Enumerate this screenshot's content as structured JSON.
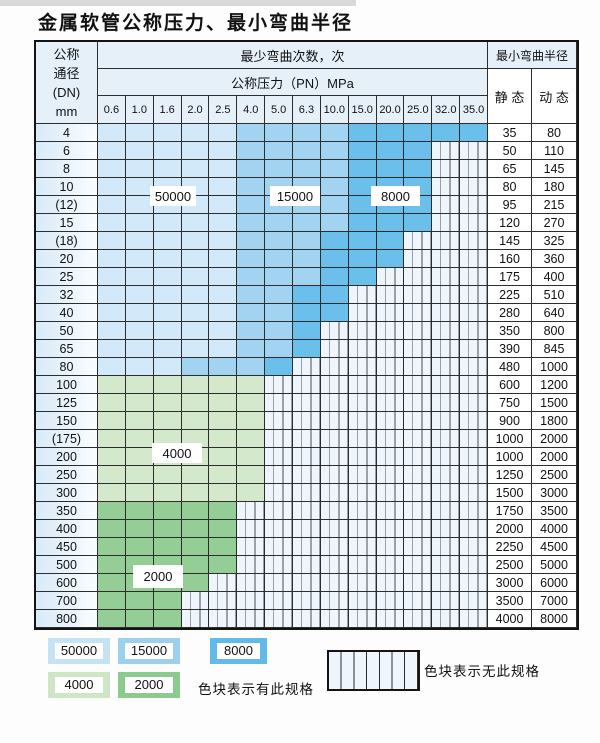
{
  "title": "金属软管公称压力、最小弯曲半径",
  "header": {
    "dn_lines": [
      "公称",
      "通径",
      "(DN)",
      "mm"
    ],
    "bend_cycles_label": "最少弯曲次数，次",
    "pressure_label": "公称压力（PN）MPa",
    "min_radius_label": "最小弯曲半径",
    "static_label": "静 态",
    "dynamic_label": "动 态",
    "pressure_cols": [
      "0.6",
      "1.0",
      "1.6",
      "2.0",
      "2.5",
      "4.0",
      "5.0",
      "6.3",
      "10.0",
      "15.0",
      "20.0",
      "25.0",
      "32.0",
      "35.0"
    ]
  },
  "zone_labels": {
    "b50000": "50000",
    "b15000": "15000",
    "b8000": "8000",
    "g4000": "4000",
    "g2000": "2000"
  },
  "colors": {
    "c50000": "#d2e9f9",
    "c15000": "#a2d4f2",
    "c8000": "#6bbfeb",
    "g4000": "#d4e8cb",
    "g2000": "#94cd96"
  },
  "legend": {
    "has_spec_text": "色块表示有此规格",
    "no_spec_text": "色块表示无此规格",
    "swatches": [
      {
        "label": "50000",
        "color": "#c6e3f5"
      },
      {
        "label": "15000",
        "color": "#9bd0ef"
      },
      {
        "label": "8000",
        "color": "#62bae7"
      },
      {
        "label": "4000",
        "color": "#cfe6c6"
      },
      {
        "label": "2000",
        "color": "#8ccb8e"
      }
    ]
  },
  "table": {
    "note": "span = number of pressure columns (from 0.6) that have this spec; zones = [last col of 50000 shade, last col of 15000 shade] for blue rows; shade = g4000/g2000 for green rows; remaining columns up to 35.0 are hatched (no spec)",
    "rows": [
      {
        "dn": "4",
        "span": 14,
        "zones": [
          5,
          9
        ],
        "static": "35",
        "dynamic": "80"
      },
      {
        "dn": "6",
        "span": 12,
        "zones": [
          5,
          9
        ],
        "static": "50",
        "dynamic": "110"
      },
      {
        "dn": "8",
        "span": 12,
        "zones": [
          5,
          9
        ],
        "static": "65",
        "dynamic": "145"
      },
      {
        "dn": "10",
        "span": 12,
        "zones": [
          5,
          9
        ],
        "static": "80",
        "dynamic": "180"
      },
      {
        "dn": "(12)",
        "span": 12,
        "zones": [
          5,
          9
        ],
        "static": "95",
        "dynamic": "215"
      },
      {
        "dn": "15",
        "span": 12,
        "zones": [
          5,
          9
        ],
        "static": "120",
        "dynamic": "270"
      },
      {
        "dn": "(18)",
        "span": 11,
        "zones": [
          5,
          8
        ],
        "static": "145",
        "dynamic": "325"
      },
      {
        "dn": "20",
        "span": 11,
        "zones": [
          5,
          8
        ],
        "static": "160",
        "dynamic": "360"
      },
      {
        "dn": "25",
        "span": 10,
        "zones": [
          5,
          8
        ],
        "static": "175",
        "dynamic": "400"
      },
      {
        "dn": "32",
        "span": 9,
        "zones": [
          5,
          7
        ],
        "static": "225",
        "dynamic": "510"
      },
      {
        "dn": "40",
        "span": 9,
        "zones": [
          5,
          7
        ],
        "static": "280",
        "dynamic": "640"
      },
      {
        "dn": "50",
        "span": 8,
        "zones": [
          5,
          7
        ],
        "static": "350",
        "dynamic": "800"
      },
      {
        "dn": "65",
        "span": 8,
        "zones": [
          5,
          7
        ],
        "static": "390",
        "dynamic": "845"
      },
      {
        "dn": "80",
        "span": 7,
        "zones": [
          3,
          6
        ],
        "static": "480",
        "dynamic": "1000"
      },
      {
        "dn": "100",
        "span": 6,
        "shade": "g4000",
        "static": "600",
        "dynamic": "1200"
      },
      {
        "dn": "125",
        "span": 6,
        "shade": "g4000",
        "static": "750",
        "dynamic": "1500"
      },
      {
        "dn": "150",
        "span": 6,
        "shade": "g4000",
        "static": "900",
        "dynamic": "1800"
      },
      {
        "dn": "(175)",
        "span": 6,
        "shade": "g4000",
        "static": "1000",
        "dynamic": "2000"
      },
      {
        "dn": "200",
        "span": 6,
        "shade": "g4000",
        "static": "1000",
        "dynamic": "2000"
      },
      {
        "dn": "250",
        "span": 6,
        "shade": "g4000",
        "static": "1250",
        "dynamic": "2500"
      },
      {
        "dn": "300",
        "span": 6,
        "shade": "g4000",
        "static": "1500",
        "dynamic": "3000"
      },
      {
        "dn": "350",
        "span": 5,
        "shade": "g2000",
        "static": "1750",
        "dynamic": "3500"
      },
      {
        "dn": "400",
        "span": 5,
        "shade": "g2000",
        "static": "2000",
        "dynamic": "4000"
      },
      {
        "dn": "450",
        "span": 5,
        "shade": "g2000",
        "static": "2250",
        "dynamic": "4500"
      },
      {
        "dn": "500",
        "span": 5,
        "shade": "g2000",
        "static": "2500",
        "dynamic": "5000"
      },
      {
        "dn": "600",
        "span": 4,
        "shade": "g2000",
        "static": "3000",
        "dynamic": "6000"
      },
      {
        "dn": "700",
        "span": 3,
        "shade": "g2000",
        "static": "3500",
        "dynamic": "7000"
      },
      {
        "dn": "800",
        "span": 3,
        "shade": "g2000",
        "static": "4000",
        "dynamic": "8000"
      }
    ]
  }
}
